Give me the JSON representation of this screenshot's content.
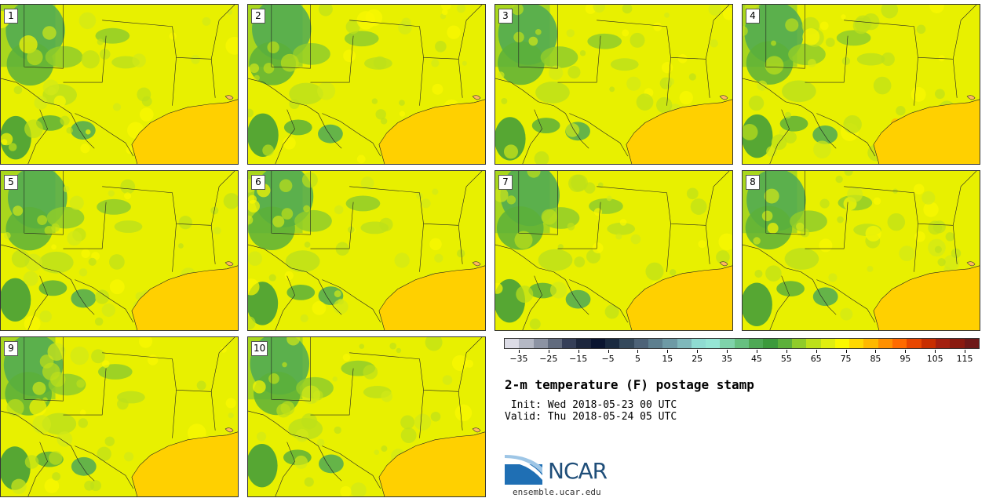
{
  "panels": [
    "1",
    "2",
    "3",
    "4",
    "5",
    "6",
    "7",
    "8",
    "9",
    "10"
  ],
  "colorbar": {
    "colors": [
      "#dcdce6",
      "#b4b8c4",
      "#8c93a3",
      "#616b7e",
      "#353f58",
      "#1c263d",
      "#0a1530",
      "#1a2a40",
      "#34495c",
      "#4d6378",
      "#5d7f8f",
      "#6d9aa5",
      "#7fb8bb",
      "#8fdcd2",
      "#95e6d5",
      "#7fd3aa",
      "#66c080",
      "#4ea955",
      "#3c9a3c",
      "#5cb03a",
      "#8fcc2a",
      "#bde01a",
      "#e0ee10",
      "#fbf800",
      "#ffd800",
      "#ffb800",
      "#ff9000",
      "#ff6a00",
      "#e84600",
      "#c82e00",
      "#a42010",
      "#8a1a10",
      "#6e1818"
    ],
    "tick_labels": [
      "−35",
      "−25",
      "−15",
      "−5",
      "5",
      "15",
      "25",
      "35",
      "45",
      "55",
      "65",
      "75",
      "85",
      "95",
      "105",
      "115"
    ],
    "range": [
      -40,
      120
    ]
  },
  "title": "2-m temperature (F) postage stamp",
  "init": " Init: Wed 2018-05-23 00 UTC",
  "valid": "Valid: Thu 2018-05-24 05 UTC",
  "logo_text": "NCAR",
  "site": "ensemble.ucar.edu"
}
